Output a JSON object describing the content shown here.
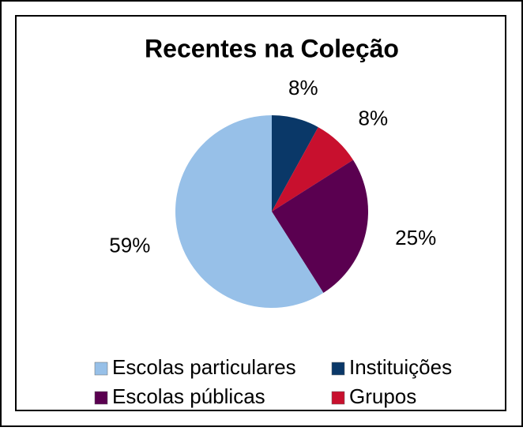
{
  "chart_data": {
    "type": "pie",
    "title": "Recentes na Coleção",
    "categories": [
      "Instituições",
      "Grupos",
      "Escolas públicas",
      "Escolas particulares"
    ],
    "values": [
      8,
      8,
      25,
      59
    ],
    "colors": [
      "#0a3868",
      "#c8102e",
      "#5a0050",
      "#97c0e8"
    ],
    "legend": "bottom"
  }
}
